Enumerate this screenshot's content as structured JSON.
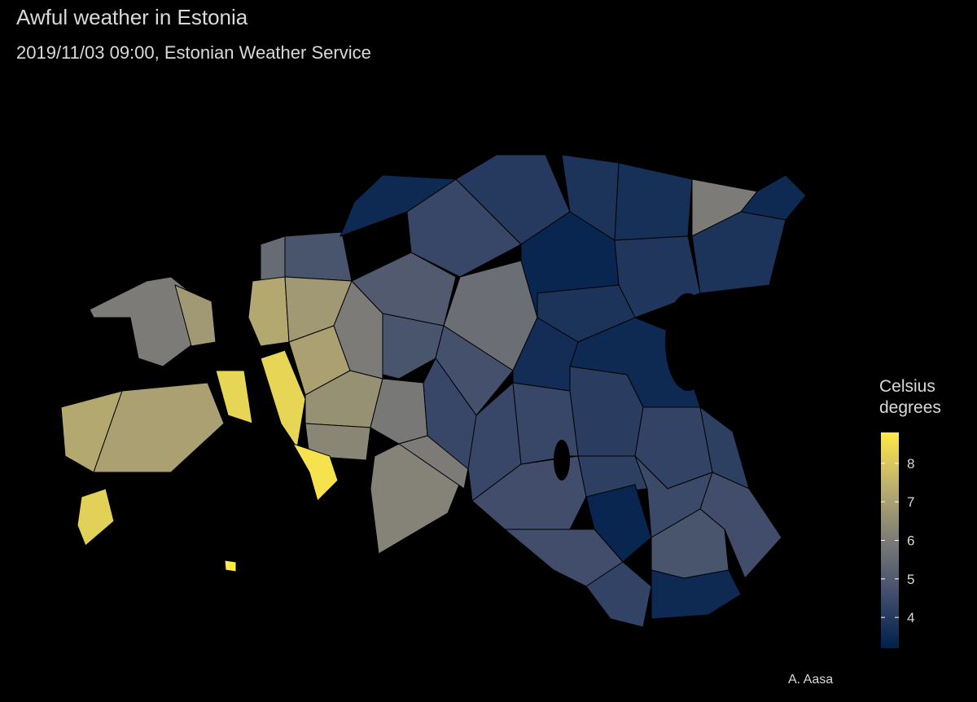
{
  "title": "Awful weather in Estonia",
  "subtitle": "2019/11/03 09:00, Estonian Weather Service",
  "caption": "A. Aasa",
  "legend": {
    "title": "Celsius degrees",
    "lim": [
      3.2,
      8.8
    ],
    "ticks": [
      4,
      5,
      6,
      7,
      8
    ],
    "palette": [
      "#00204D",
      "#414D6B",
      "#7C7B78",
      "#BCAF6F",
      "#FFEA46"
    ]
  },
  "values": [
    6.0,
    6.8,
    7.2,
    7.0,
    8.2,
    8.3,
    8.8,
    5.5,
    4.8,
    7.2,
    6.8,
    8.3,
    7.0,
    6.6,
    6.3,
    8.6,
    6.0,
    5.0,
    4.8,
    5.9,
    6.2,
    6.0,
    4.4,
    5.6,
    4.7,
    4.4,
    4.0,
    3.4,
    3.8,
    3.7,
    6.0,
    3.5,
    3.8,
    3.9,
    3.8,
    3.6,
    3.5,
    4.4,
    4.1,
    4.3,
    4.2,
    4.6,
    4.2,
    3.4,
    4.5,
    4.6,
    4.8,
    4.6,
    4.3,
    3.5,
    3.5,
    4.4
  ]
}
